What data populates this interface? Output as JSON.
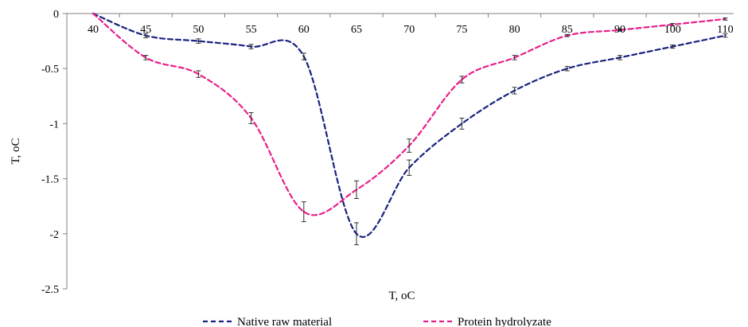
{
  "chart_data": {
    "type": "line",
    "title": "",
    "xlabel": "T, oC",
    "ylabel": "T, oC",
    "categories": [
      "40",
      "45",
      "50",
      "55",
      "60",
      "65",
      "70",
      "75",
      "80",
      "85",
      "90",
      "100",
      "110"
    ],
    "ylim": [
      -2.5,
      0
    ],
    "yticks": [
      0,
      -0.5,
      -1,
      -1.5,
      -2,
      -2.5
    ],
    "ytick_labels": [
      "0",
      "-0.5",
      "-1",
      "-1.5",
      "-2",
      "-2.5"
    ],
    "grid": false,
    "legend_position": "bottom",
    "series": [
      {
        "name": "Native raw material",
        "color": "#1a237e",
        "values": [
          0,
          -0.2,
          -0.25,
          -0.3,
          -0.39,
          -2.0,
          -1.4,
          -1.0,
          -0.7,
          -0.5,
          -0.4,
          -0.3,
          -0.2
        ],
        "errors": [
          0,
          0.02,
          0.02,
          0.02,
          0.03,
          0.1,
          0.07,
          0.05,
          0.03,
          0.02,
          0.02,
          0.015,
          0.015
        ]
      },
      {
        "name": "Protein hydrolyzate",
        "color": "#e91e8c",
        "values": [
          0,
          -0.4,
          -0.55,
          -0.95,
          -1.8,
          -1.6,
          -1.2,
          -0.6,
          -0.4,
          -0.2,
          -0.15,
          -0.1,
          -0.05
        ],
        "errors": [
          0,
          0.02,
          0.03,
          0.05,
          0.09,
          0.08,
          0.06,
          0.03,
          0.02,
          0.01,
          0.01,
          0.01,
          0.01
        ]
      }
    ]
  }
}
